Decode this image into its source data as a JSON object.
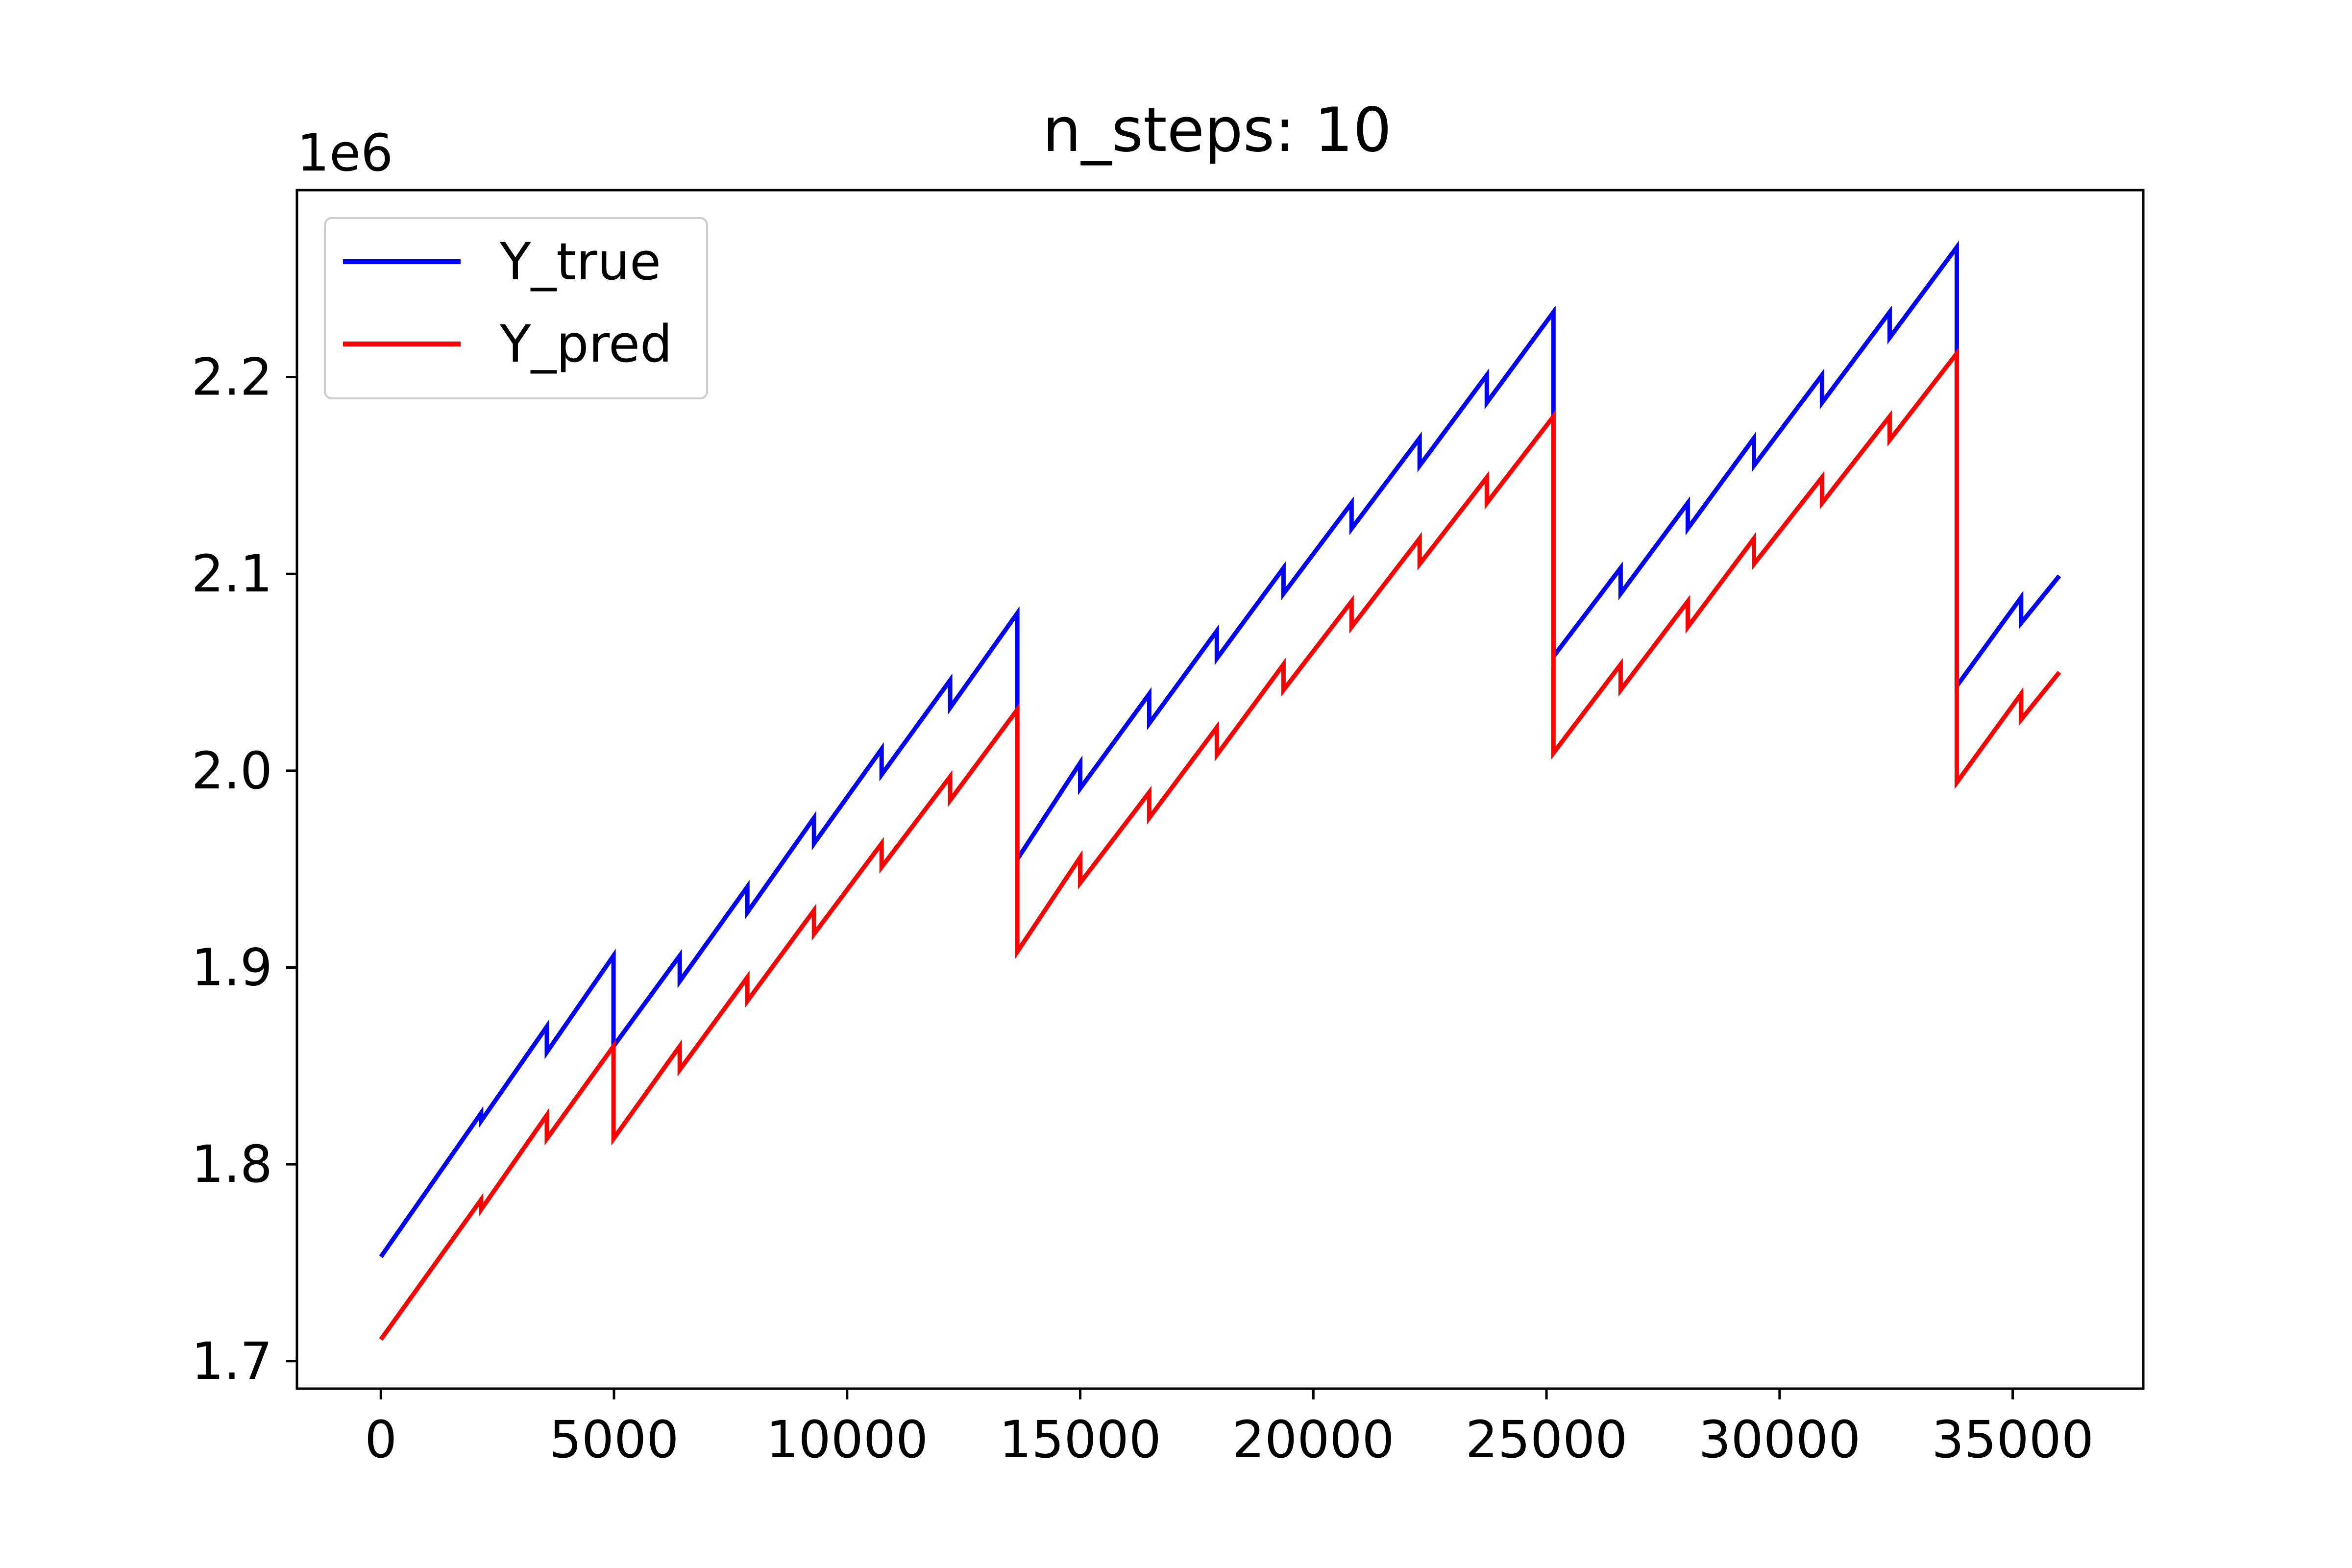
{
  "chart_data": {
    "type": "line",
    "title": "n_steps: 10",
    "xlabel": "",
    "ylabel": "",
    "y_offset_label": "1e6",
    "xlim": [
      -1800,
      37800
    ],
    "ylim": [
      1.686,
      2.295
    ],
    "x_ticks": [
      {
        "value": 0,
        "label": "0"
      },
      {
        "value": 5000,
        "label": "5000"
      },
      {
        "value": 10000,
        "label": "10000"
      },
      {
        "value": 15000,
        "label": "15000"
      },
      {
        "value": 20000,
        "label": "20000"
      },
      {
        "value": 25000,
        "label": "25000"
      },
      {
        "value": 30000,
        "label": "30000"
      },
      {
        "value": 35000,
        "label": "35000"
      }
    ],
    "y_ticks": [
      {
        "value": 1.7,
        "label": "1.7"
      },
      {
        "value": 1.8,
        "label": "1.8"
      },
      {
        "value": 1.9,
        "label": "1.9"
      },
      {
        "value": 2.0,
        "label": "2.0"
      },
      {
        "value": 2.1,
        "label": "2.1"
      },
      {
        "value": 2.2,
        "label": "2.2"
      }
    ],
    "grid": false,
    "legend_position": "top-left",
    "series": [
      {
        "name": "Y_true",
        "color": "#0000ff",
        "x": [
          0,
          2150,
          2150,
          3560,
          3560,
          4990,
          4990,
          6410,
          6410,
          7860,
          7860,
          9290,
          9290,
          10740,
          10740,
          12210,
          12210,
          13650,
          13650,
          15000,
          15000,
          16480,
          16480,
          17930,
          17930,
          19360,
          19360,
          20820,
          20820,
          22280,
          22280,
          23720,
          23720,
          25150,
          25150,
          26590,
          26590,
          28030,
          28030,
          29450,
          29450,
          30910,
          30910,
          32360,
          32360,
          33800,
          33800,
          35180,
          35180,
          36000
        ],
        "y": [
          1.753,
          1.826,
          1.822,
          1.87,
          1.857,
          1.906,
          1.86,
          1.906,
          1.893,
          1.941,
          1.928,
          1.976,
          1.963,
          2.011,
          1.998,
          2.046,
          2.032,
          2.08,
          1.955,
          2.004,
          1.991,
          2.039,
          2.024,
          2.071,
          2.057,
          2.103,
          2.09,
          2.136,
          2.123,
          2.169,
          2.155,
          2.201,
          2.187,
          2.233,
          2.058,
          2.103,
          2.09,
          2.136,
          2.123,
          2.169,
          2.155,
          2.201,
          2.187,
          2.233,
          2.22,
          2.266,
          2.043,
          2.088,
          2.075,
          2.099
        ]
      },
      {
        "name": "Y_pred",
        "color": "#ff0000",
        "x": [
          0,
          2150,
          2150,
          3560,
          3560,
          4990,
          4990,
          6410,
          6410,
          7860,
          7860,
          9290,
          9290,
          10740,
          10740,
          12210,
          12210,
          13650,
          13650,
          15000,
          15000,
          16480,
          16480,
          17930,
          17930,
          19360,
          19360,
          20820,
          20820,
          22280,
          22280,
          23720,
          23720,
          25150,
          25150,
          26590,
          26590,
          28030,
          28030,
          29450,
          29450,
          30910,
          30910,
          32360,
          32360,
          33800,
          33800,
          35180,
          35180,
          36000
        ],
        "y": [
          1.711,
          1.782,
          1.777,
          1.825,
          1.813,
          1.86,
          1.813,
          1.86,
          1.848,
          1.895,
          1.883,
          1.929,
          1.917,
          1.963,
          1.951,
          1.997,
          1.985,
          2.031,
          1.908,
          1.956,
          1.943,
          1.989,
          1.976,
          2.022,
          2.008,
          2.054,
          2.041,
          2.086,
          2.073,
          2.118,
          2.105,
          2.149,
          2.136,
          2.18,
          2.009,
          2.054,
          2.041,
          2.086,
          2.073,
          2.118,
          2.105,
          2.149,
          2.136,
          2.18,
          2.168,
          2.212,
          1.994,
          2.039,
          2.026,
          2.05
        ]
      }
    ]
  }
}
